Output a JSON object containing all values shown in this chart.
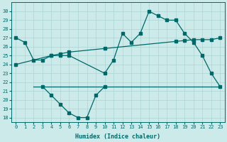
{
  "bg_color": "#cceaea",
  "line_color": "#006868",
  "grid_color": "#aad4d4",
  "ylim": [
    17.5,
    31
  ],
  "xlim": [
    -0.5,
    23.5
  ],
  "yticks": [
    18,
    19,
    20,
    21,
    22,
    23,
    24,
    25,
    26,
    27,
    28,
    29,
    30
  ],
  "xticks": [
    0,
    1,
    2,
    3,
    4,
    5,
    6,
    7,
    8,
    9,
    10,
    11,
    12,
    13,
    14,
    15,
    16,
    17,
    18,
    19,
    20,
    21,
    22,
    23
  ],
  "xlabel": "Humidex (Indice chaleur)",
  "line1_x": [
    0,
    1,
    2,
    3,
    4,
    5,
    6,
    10,
    11,
    12,
    13,
    14,
    15,
    16,
    17,
    18,
    19,
    20,
    21,
    22,
    23
  ],
  "line1_y": [
    27,
    26.5,
    24.5,
    24.5,
    25,
    25,
    25,
    23,
    24.5,
    27.5,
    26.5,
    27.5,
    30,
    29.5,
    29,
    29,
    27.5,
    26.5,
    25,
    23,
    21.5
  ],
  "line2_x": [
    0,
    4,
    5,
    6,
    10,
    18,
    19,
    20,
    21,
    22,
    23
  ],
  "line2_y": [
    24,
    25,
    25.2,
    25.4,
    25.8,
    26.6,
    26.7,
    26.8,
    26.8,
    26.8,
    27
  ],
  "line3_x": [
    2,
    3,
    4,
    5,
    6,
    7,
    8,
    9,
    10,
    18,
    19,
    20,
    21,
    22,
    23
  ],
  "line3_y": [
    21.5,
    21.5,
    21.5,
    21.5,
    21.5,
    21.5,
    21.5,
    21.5,
    21.5,
    21.5,
    21.5,
    21.5,
    21.5,
    21.5,
    21.5
  ],
  "line4_x": [
    3,
    4,
    5,
    6,
    7,
    8,
    9,
    10
  ],
  "line4_y": [
    21.5,
    20.5,
    19.5,
    18.5,
    18,
    18,
    20.5,
    21.5
  ],
  "tick_fontsize": 5,
  "label_fontsize": 6
}
